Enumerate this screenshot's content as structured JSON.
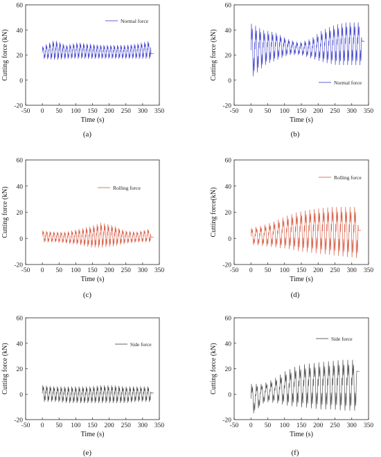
{
  "figure": {
    "panels": [
      {
        "id": "a",
        "label": "(a)",
        "legend": "Normal force",
        "color": "#2c2cc8"
      },
      {
        "id": "b",
        "label": "(b)",
        "legend": "Normal force",
        "color": "#2c2cc8"
      },
      {
        "id": "c",
        "label": "(c)",
        "legend": "Rolling force",
        "color": "#d2462c"
      },
      {
        "id": "d",
        "label": "(d)",
        "legend": "Rolling force",
        "color": "#d2462c"
      },
      {
        "id": "e",
        "label": "(e)",
        "legend": "Side force",
        "color": "#333333"
      },
      {
        "id": "f",
        "label": "(f)",
        "legend": "Side force",
        "color": "#333333"
      }
    ]
  },
  "chart_data": [
    {
      "type": "line",
      "panel": "a",
      "xlabel": "Time (s)",
      "ylabel": "Cutting force (kN)",
      "xlim": [
        -50,
        350
      ],
      "ylim": [
        -20,
        60
      ],
      "xticks": [
        -50,
        0,
        50,
        100,
        150,
        200,
        250,
        300,
        350
      ],
      "yticks": [
        -20,
        0,
        20,
        40,
        60
      ],
      "series": [
        {
          "name": "Normal force",
          "t_start": 0,
          "t_end": 325,
          "cycles": 32,
          "upper": [
            27,
            32,
            28,
            30,
            29,
            28,
            28,
            28,
            29,
            31
          ],
          "lower": [
            17,
            16,
            17,
            17,
            17,
            17,
            17,
            17,
            17,
            17
          ],
          "end_value": 21
        }
      ]
    },
    {
      "type": "line",
      "panel": "b",
      "xlabel": "Time (s)",
      "ylabel": "Cutting force (kN)",
      "xlim": [
        -50,
        350
      ],
      "ylim": [
        -20,
        60
      ],
      "xticks": [
        -50,
        0,
        50,
        100,
        150,
        200,
        250,
        300,
        350
      ],
      "yticks": [
        -20,
        0,
        20,
        40,
        60
      ],
      "series": [
        {
          "name": "Normal force",
          "t_start": 0,
          "t_end": 330,
          "cycles": 27,
          "upper": [
            45,
            40,
            38,
            33,
            30,
            33,
            40,
            44,
            46,
            46
          ],
          "lower": [
            3,
            12,
            16,
            20,
            20,
            17,
            14,
            12,
            12,
            12
          ],
          "end_value": 31
        }
      ]
    },
    {
      "type": "line",
      "panel": "c",
      "xlabel": "Time (s)",
      "ylabel": "Cutting force (kN)",
      "xlim": [
        -50,
        350
      ],
      "ylim": [
        -20,
        60
      ],
      "xticks": [
        -50,
        0,
        50,
        100,
        150,
        200,
        250,
        300,
        350
      ],
      "yticks": [
        -20,
        0,
        20,
        40,
        60
      ],
      "series": [
        {
          "name": "Rolling force",
          "t_start": 0,
          "t_end": 325,
          "cycles": 30,
          "upper": [
            6,
            5,
            5,
            7,
            9,
            12,
            10,
            6,
            5,
            7
          ],
          "lower": [
            -3,
            -3,
            -4,
            -5,
            -7,
            -7,
            -6,
            -4,
            -3,
            -3
          ],
          "end_value": 1
        }
      ]
    },
    {
      "type": "line",
      "panel": "d",
      "xlabel": "Time (s)",
      "ylabel": "Cutting force(kN)",
      "xlim": [
        -50,
        350
      ],
      "ylim": [
        -20,
        60
      ],
      "xticks": [
        -50,
        0,
        50,
        100,
        150,
        200,
        250,
        300,
        350
      ],
      "yticks": [
        -20,
        0,
        20,
        40,
        60
      ],
      "series": [
        {
          "name": "Rolling force",
          "t_start": 0,
          "t_end": 320,
          "cycles": 24,
          "upper": [
            8,
            10,
            13,
            17,
            20,
            22,
            23,
            24,
            24,
            24
          ],
          "lower": [
            -5,
            -6,
            -7,
            -8,
            -10,
            -11,
            -12,
            -13,
            -14,
            -15
          ],
          "end_value": 6
        }
      ]
    },
    {
      "type": "line",
      "panel": "e",
      "xlabel": "Time (s)",
      "ylabel": "Cutting force (kN)",
      "xlim": [
        -50,
        350
      ],
      "ylim": [
        -20,
        60
      ],
      "xticks": [
        -50,
        0,
        50,
        100,
        150,
        200,
        250,
        300,
        350
      ],
      "yticks": [
        -20,
        0,
        20,
        40,
        60
      ],
      "series": [
        {
          "name": "Side force",
          "t_start": 0,
          "t_end": 325,
          "cycles": 30,
          "upper": [
            7,
            6,
            6,
            6,
            6,
            7,
            7,
            6,
            6,
            6
          ],
          "lower": [
            -6,
            -6,
            -7,
            -7,
            -7,
            -7,
            -7,
            -7,
            -6,
            -6
          ],
          "end_value": 1
        }
      ]
    },
    {
      "type": "line",
      "panel": "f",
      "xlabel": "Time (s)",
      "ylabel": "Cutting force (kN)",
      "xlim": [
        -50,
        350
      ],
      "ylim": [
        -20,
        60
      ],
      "xticks": [
        -50,
        0,
        50,
        100,
        150,
        200,
        250,
        300,
        350
      ],
      "yticks": [
        -20,
        0,
        20,
        40,
        60
      ],
      "series": [
        {
          "name": "Side force",
          "t_start": 0,
          "t_end": 315,
          "cycles": 22,
          "upper": [
            8,
            8,
            12,
            18,
            22,
            24,
            25,
            26,
            27,
            27
          ],
          "lower": [
            -15,
            -6,
            -7,
            -9,
            -10,
            -11,
            -12,
            -12,
            -13,
            -13
          ],
          "end_value": 18
        }
      ]
    }
  ]
}
